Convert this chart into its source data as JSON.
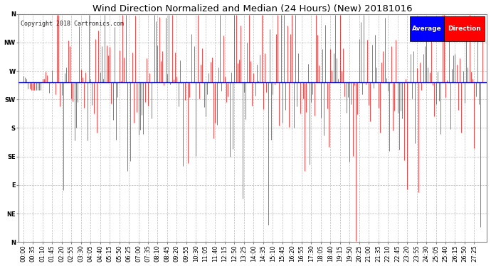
{
  "title": "Wind Direction Normalized and Median (24 Hours) (New) 20181016",
  "copyright": "Copyright 2018 Cartronics.com",
  "bg_color": "#ffffff",
  "plot_bg_color": "#ffffff",
  "grid_color": "#bbbbbb",
  "y_labels": [
    "N",
    "NW",
    "W",
    "SW",
    "S",
    "SE",
    "E",
    "NE",
    "N"
  ],
  "y_values": [
    360,
    315,
    270,
    225,
    180,
    135,
    90,
    45,
    0
  ],
  "ylim": [
    0,
    360
  ],
  "median_value": 252,
  "legend_label_avg": "Average",
  "legend_label_dir": "Direction",
  "legend_bg_avg": "#0000ff",
  "legend_bg_dir": "#ff0000",
  "legend_text_color": "#ffffff",
  "title_fontsize": 9.5,
  "tick_fontsize": 6,
  "red_color": "#ff0000",
  "blue_color": "#0000cc",
  "x_tick_interval": 6,
  "n_points": 288
}
